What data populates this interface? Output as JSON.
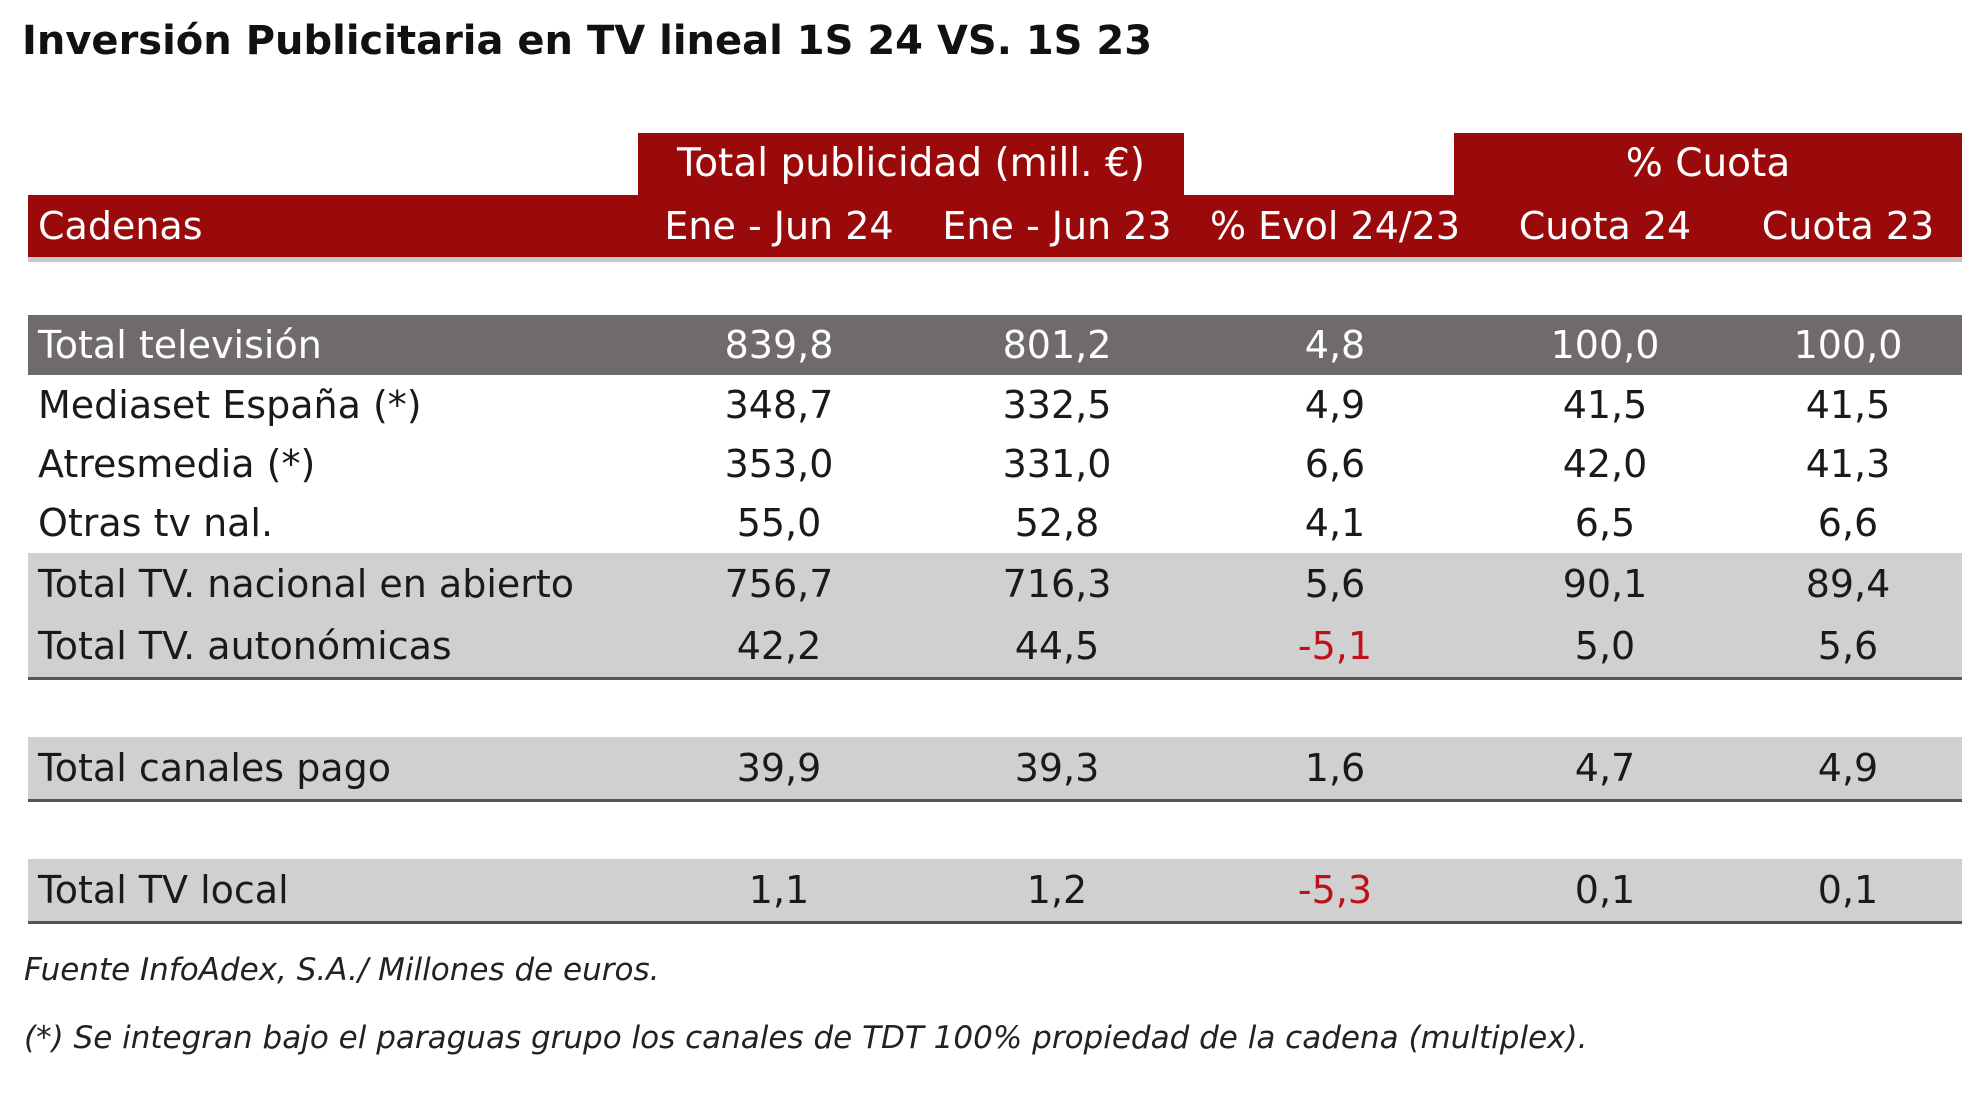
{
  "title": "Inversión Publicitaria en TV lineal 1S 24 VS. 1S 23",
  "chart_data": {
    "type": "table",
    "group_headers": [
      {
        "label": "Total publicidad (mill. €)"
      },
      {
        "label": "% Cuota"
      }
    ],
    "columns": [
      "Cadenas",
      "Ene - Jun  24",
      "Ene -  Jun  23",
      "% Evol 24/23",
      "Cuota  24",
      "Cuota 23"
    ],
    "rows": [
      {
        "cadena": "Total televisión",
        "ene_jun_24": "839,8",
        "ene_jun_23": "801,2",
        "evol": "4,8",
        "cuota_24": "100,0",
        "cuota_23": "100,0"
      },
      {
        "cadena": "Mediaset España (*)",
        "ene_jun_24": "348,7",
        "ene_jun_23": "332,5",
        "evol": "4,9",
        "cuota_24": "41,5",
        "cuota_23": "41,5"
      },
      {
        "cadena": "Atresmedia (*)",
        "ene_jun_24": "353,0",
        "ene_jun_23": "331,0",
        "evol": "6,6",
        "cuota_24": "42,0",
        "cuota_23": "41,3"
      },
      {
        "cadena": "Otras tv nal.",
        "ene_jun_24": "55,0",
        "ene_jun_23": "52,8",
        "evol": "4,1",
        "cuota_24": "6,5",
        "cuota_23": "6,6"
      },
      {
        "cadena": "Total TV. nacional en abierto",
        "ene_jun_24": "756,7",
        "ene_jun_23": "716,3",
        "evol": "5,6",
        "cuota_24": "90,1",
        "cuota_23": "89,4"
      },
      {
        "cadena": "Total TV. autonómicas",
        "ene_jun_24": "42,2",
        "ene_jun_23": "44,5",
        "evol": "-5,1",
        "cuota_24": "5,0",
        "cuota_23": "5,6"
      },
      {
        "cadena": "Total canales pago",
        "ene_jun_24": "39,9",
        "ene_jun_23": "39,3",
        "evol": "1,6",
        "cuota_24": "4,7",
        "cuota_23": "4,9"
      },
      {
        "cadena": "Total TV local",
        "ene_jun_24": "1,1",
        "ene_jun_23": "1,2",
        "evol": "-5,3",
        "cuota_24": "0,1",
        "cuota_23": "0,1"
      }
    ],
    "colors": {
      "header": "#9b0a0a",
      "total_row": "#6f6b6b",
      "subtotal_row": "#d0d0d0",
      "negative": "#c0111a"
    }
  },
  "footnotes": [
    "Fuente InfoAdex, S.A./ Millones de euros.",
    "(*) Se integran bajo el paraguas grupo los canales de TDT 100% propiedad de la cadena (multiplex)."
  ]
}
